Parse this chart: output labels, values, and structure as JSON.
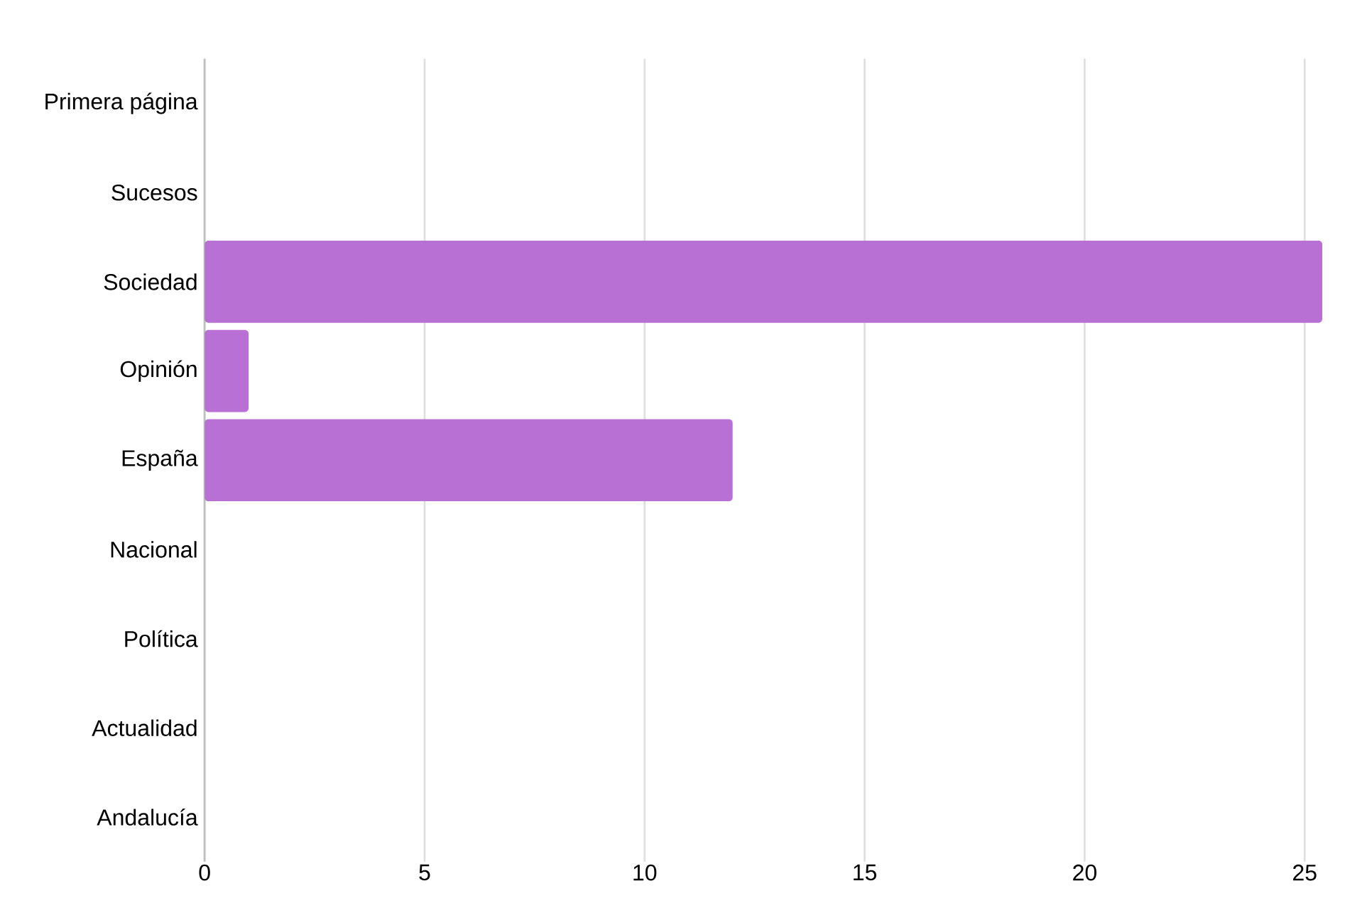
{
  "chart_data": {
    "type": "bar",
    "orientation": "horizontal",
    "categories": [
      "Primera página",
      "Sucesos",
      "Sociedad",
      "Opinión",
      "España",
      "Nacional",
      "Política",
      "Actualidad",
      "Andalucía"
    ],
    "values": [
      0,
      0,
      25.4,
      1,
      12,
      0,
      0,
      0,
      0
    ],
    "color": "#b870d4",
    "xlim": [
      0,
      25.4
    ],
    "xticks": [
      0,
      5,
      10,
      15,
      20,
      25
    ],
    "grid": "x"
  }
}
